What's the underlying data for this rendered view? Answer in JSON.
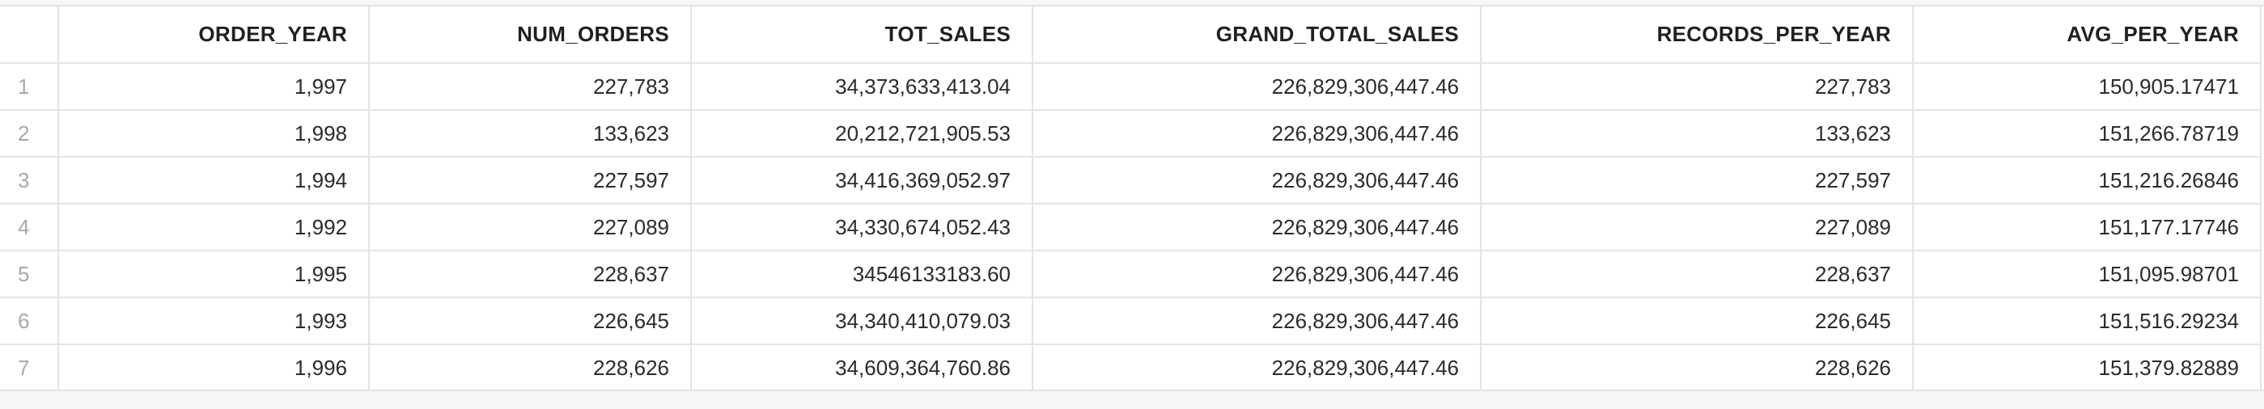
{
  "results_grid": {
    "columns": [
      "ORDER_YEAR",
      "NUM_ORDERS",
      "TOT_SALES",
      "GRAND_TOTAL_SALES",
      "RECORDS_PER_YEAR",
      "AVG_PER_YEAR"
    ],
    "rows": [
      {
        "row_number": "1",
        "cells": [
          "1,997",
          "227,783",
          "34,373,633,413.04",
          "226,829,306,447.46",
          "227,783",
          "150,905.17471"
        ]
      },
      {
        "row_number": "2",
        "cells": [
          "1,998",
          "133,623",
          "20,212,721,905.53",
          "226,829,306,447.46",
          "133,623",
          "151,266.78719"
        ]
      },
      {
        "row_number": "3",
        "cells": [
          "1,994",
          "227,597",
          "34,416,369,052.97",
          "226,829,306,447.46",
          "227,597",
          "151,216.26846"
        ]
      },
      {
        "row_number": "4",
        "cells": [
          "1,992",
          "227,089",
          "34,330,674,052.43",
          "226,829,306,447.46",
          "227,089",
          "151,177.17746"
        ]
      },
      {
        "row_number": "5",
        "cells": [
          "1,995",
          "228,637",
          "34546133183.60",
          "226,829,306,447.46",
          "228,637",
          "151,095.98701"
        ]
      },
      {
        "row_number": "6",
        "cells": [
          "1,993",
          "226,645",
          "34,340,410,079.03",
          "226,829,306,447.46",
          "226,645",
          "151,516.29234"
        ]
      },
      {
        "row_number": "7",
        "cells": [
          "1,996",
          "228,626",
          "34,609,364,760.86",
          "226,829,306,447.46",
          "228,626",
          "151,379.82889"
        ]
      }
    ]
  }
}
